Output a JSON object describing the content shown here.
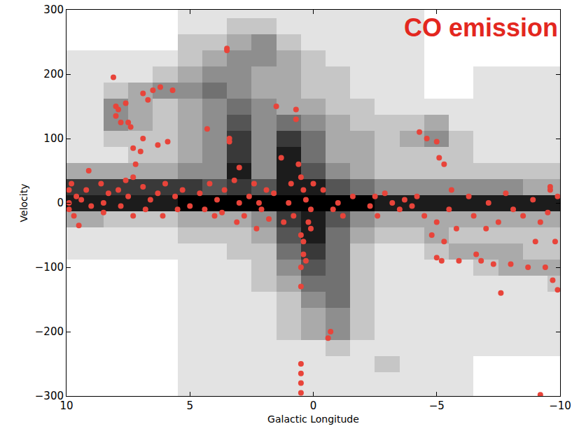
{
  "chart_data": {
    "type": "scatter",
    "xlabel": "Galactic Longitude",
    "ylabel": "Velocity",
    "xlim": [
      10,
      -10
    ],
    "ylim": [
      -300,
      300
    ],
    "xticks": [
      10,
      5,
      0,
      {
        "value": -5,
        "label": "−5"
      },
      {
        "value": -10,
        "label": "−10"
      }
    ],
    "yticks": [
      {
        "value": -300,
        "label": "−300"
      },
      {
        "value": -200,
        "label": "−200"
      },
      {
        "value": -100,
        "label": "−100"
      },
      0,
      100,
      200,
      300
    ],
    "grid": false,
    "annotations": [
      {
        "text": "CO emission",
        "color": "#e3271f"
      }
    ],
    "heatmap": {
      "x": [
        10,
        9,
        8,
        7,
        6,
        5,
        4,
        3,
        2,
        1,
        0,
        -1,
        -2,
        -3,
        -4,
        -5,
        -6,
        -7,
        -8,
        -9,
        -10
      ],
      "y": [
        -300,
        -275,
        -250,
        -225,
        -200,
        -175,
        -150,
        -125,
        -100,
        -75,
        -50,
        -25,
        0,
        25,
        50,
        75,
        100,
        125,
        150,
        175,
        200,
        225,
        250,
        275,
        300
      ],
      "zlim": [
        0,
        9
      ],
      "z": [
        [
          null,
          null,
          null,
          null,
          null,
          1,
          1,
          1,
          1,
          1,
          1,
          1,
          1,
          1,
          1,
          1,
          1,
          null,
          null,
          null,
          null
        ],
        [
          null,
          null,
          null,
          null,
          null,
          1,
          1,
          1,
          1,
          1,
          1,
          1,
          1,
          1,
          1,
          1,
          1,
          null,
          null,
          null,
          null
        ],
        [
          null,
          null,
          null,
          null,
          null,
          1,
          1,
          1,
          1,
          1,
          1,
          1,
          1,
          2,
          1,
          1,
          1,
          null,
          null,
          null,
          null
        ],
        [
          null,
          null,
          null,
          null,
          null,
          1,
          1,
          1,
          1,
          1,
          1,
          2,
          1,
          1,
          1,
          1,
          1,
          1,
          1,
          1,
          1
        ],
        [
          null,
          null,
          null,
          null,
          null,
          1,
          1,
          1,
          1,
          2,
          3,
          4,
          2,
          1,
          1,
          1,
          1,
          1,
          1,
          1,
          1
        ],
        [
          null,
          null,
          null,
          null,
          null,
          1,
          1,
          1,
          1,
          2,
          3,
          4,
          2,
          1,
          1,
          1,
          1,
          1,
          1,
          1,
          1
        ],
        [
          null,
          null,
          null,
          null,
          null,
          1,
          1,
          1,
          1,
          2,
          4,
          5,
          2,
          1,
          1,
          1,
          1,
          1,
          1,
          1,
          1
        ],
        [
          null,
          null,
          null,
          null,
          null,
          1,
          1,
          1,
          2,
          3,
          5,
          5,
          2,
          1,
          1,
          1,
          1,
          1,
          1,
          1,
          2
        ],
        [
          null,
          null,
          null,
          null,
          null,
          1,
          1,
          1,
          2,
          4,
          6,
          5,
          2,
          1,
          1,
          1,
          1,
          2,
          3,
          3,
          3
        ],
        [
          1,
          1,
          1,
          1,
          1,
          1,
          1,
          2,
          2,
          5,
          7,
          5,
          2,
          1,
          1,
          2,
          3,
          3,
          3,
          2,
          2
        ],
        [
          1,
          1,
          1,
          1,
          1,
          2,
          2,
          2,
          3,
          6,
          8,
          5,
          3,
          2,
          2,
          3,
          2,
          2,
          2,
          2,
          2
        ],
        [
          3,
          3,
          2,
          2,
          2,
          3,
          3,
          3,
          4,
          7,
          8,
          6,
          4,
          3,
          3,
          3,
          3,
          3,
          3,
          3,
          3
        ],
        [
          8,
          8,
          8,
          8,
          8,
          9,
          9,
          9,
          9,
          9,
          9,
          9,
          9,
          8,
          8,
          8,
          8,
          8,
          8,
          8,
          8
        ],
        [
          7,
          7,
          7,
          7,
          7,
          7,
          6,
          7,
          6,
          8,
          8,
          6,
          5,
          4,
          4,
          4,
          4,
          4,
          4,
          3,
          3
        ],
        [
          3,
          3,
          3,
          3,
          3,
          4,
          4,
          8,
          4,
          8,
          6,
          4,
          3,
          2,
          2,
          2,
          2,
          2,
          2,
          2,
          2
        ],
        [
          1,
          1,
          1,
          2,
          2,
          3,
          4,
          7,
          4,
          8,
          5,
          3,
          3,
          2,
          2,
          2,
          2,
          1,
          1,
          1,
          1
        ],
        [
          1,
          1,
          2,
          2,
          2,
          3,
          4,
          7,
          4,
          7,
          5,
          3,
          3,
          2,
          3,
          4,
          2,
          1,
          1,
          1,
          1
        ],
        [
          1,
          1,
          4,
          3,
          2,
          3,
          4,
          6,
          4,
          5,
          4,
          3,
          2,
          2,
          2,
          3,
          1,
          1,
          1,
          1,
          1
        ],
        [
          1,
          1,
          4,
          3,
          2,
          3,
          4,
          5,
          4,
          3,
          3,
          2,
          2,
          1,
          1,
          1,
          1,
          1,
          1,
          1,
          1
        ],
        [
          1,
          1,
          2,
          3,
          4,
          4,
          5,
          4,
          3,
          3,
          2,
          2,
          1,
          1,
          1,
          null,
          null,
          1,
          1,
          1,
          1
        ],
        [
          1,
          1,
          1,
          1,
          2,
          3,
          4,
          4,
          3,
          3,
          2,
          2,
          1,
          1,
          1,
          null,
          null,
          1,
          1,
          1,
          1
        ],
        [
          1,
          1,
          1,
          1,
          1,
          2,
          3,
          4,
          4,
          3,
          2,
          1,
          1,
          1,
          1,
          null,
          null,
          null,
          null,
          null,
          null
        ],
        [
          null,
          null,
          null,
          null,
          null,
          2,
          2,
          3,
          4,
          2,
          1,
          1,
          1,
          1,
          1,
          null,
          null,
          null,
          null,
          null,
          null
        ],
        [
          null,
          null,
          null,
          null,
          null,
          1,
          1,
          2,
          2,
          1,
          1,
          1,
          1,
          1,
          1,
          null,
          null,
          null,
          null,
          null,
          null
        ],
        [
          null,
          null,
          null,
          null,
          null,
          1,
          1,
          1,
          1,
          1,
          1,
          1,
          1,
          1,
          1,
          null,
          null,
          null,
          null,
          null,
          null
        ]
      ]
    },
    "series": [
      {
        "color": "#e8443a",
        "marker": "circle",
        "x": [
          9.9,
          9.9,
          9.9,
          9.8,
          9.7,
          9.6,
          9.5,
          9.4,
          9.2,
          9.0,
          9.1,
          8.6,
          8.5,
          8.5,
          8.3,
          8.1,
          8.0,
          8.0,
          7.9,
          7.8,
          7.6,
          7.5,
          7.4,
          7.9,
          7.8,
          7.6,
          7.5,
          7.3,
          7.3,
          7.2,
          7.3,
          7.0,
          6.9,
          6.9,
          6.8,
          6.9,
          6.7,
          6.5,
          6.6,
          6.3,
          6.2,
          6.3,
          6.1,
          6.0,
          5.9,
          5.7,
          5.6,
          5.5,
          5.3,
          5.0,
          4.6,
          4.4,
          4.3,
          4.2,
          4.0,
          3.9,
          3.7,
          3.6,
          3.5,
          3.5,
          3.4,
          3.4,
          3.2,
          3.1,
          3.0,
          3.0,
          2.8,
          2.6,
          2.4,
          2.3,
          2.2,
          2.1,
          1.9,
          1.8,
          1.6,
          1.5,
          1.3,
          1.2,
          1.0,
          0.9,
          0.8,
          0.7,
          0.7,
          0.6,
          0.5,
          0.5,
          0.4,
          0.4,
          0.3,
          0.2,
          0.1,
          0.0,
          0.5,
          0.5,
          0.5,
          0.5,
          0.5,
          0.5,
          0.4,
          0.3,
          0.1,
          -0.6,
          -0.7,
          -0.4,
          -0.8,
          -1.0,
          -1.2,
          -1.6,
          -2.3,
          -2.5,
          -2.6,
          -2.9,
          -3.2,
          -3.5,
          -3.7,
          -4.0,
          -4.2,
          -4.3,
          -4.6,
          -5.0,
          -5.1,
          -5.3,
          -4.5,
          -4.8,
          -5.0,
          -5.2,
          -5.0,
          -5.3,
          -5.5,
          -5.6,
          -5.8,
          -5.9,
          -6.3,
          -6.5,
          -6.6,
          -6.8,
          -7.0,
          -7.1,
          -7.3,
          -7.5,
          -7.6,
          -7.8,
          -8.0,
          -8.1,
          -8.5,
          -8.7,
          -8.9,
          -9.0,
          -9.2,
          -9.4,
          -9.5,
          -9.6,
          -9.7,
          -9.8,
          -9.9,
          -9.9,
          -9.2,
          -9.6
        ],
        "y": [
          20,
          0,
          -10,
          30,
          -20,
          10,
          -35,
          5,
          20,
          -5,
          50,
          30,
          0,
          -15,
          15,
          195,
          150,
          135,
          145,
          125,
          155,
          125,
          118,
          20,
          -5,
          35,
          10,
          -20,
          85,
          60,
          40,
          80,
          100,
          25,
          -10,
          170,
          160,
          175,
          5,
          90,
          180,
          15,
          -20,
          30,
          95,
          175,
          10,
          -10,
          20,
          -5,
          15,
          -10,
          115,
          30,
          -20,
          5,
          -15,
          20,
          240,
          237,
          100,
          95,
          35,
          -30,
          0,
          55,
          -20,
          10,
          30,
          -40,
          0,
          -10,
          20,
          -25,
          15,
          150,
          70,
          -30,
          0,
          30,
          -20,
          130,
          145,
          60,
          40,
          -50,
          -60,
          20,
          5,
          -30,
          -10,
          30,
          -100,
          -130,
          -250,
          -265,
          -280,
          -295,
          -80,
          -90,
          -40,
          -210,
          -200,
          20,
          -10,
          0,
          -20,
          10,
          -5,
          10,
          -20,
          15,
          0,
          -10,
          5,
          -5,
          10,
          110,
          100,
          95,
          70,
          60,
          -20,
          -50,
          -85,
          -90,
          -30,
          -60,
          -10,
          20,
          -40,
          -90,
          10,
          -20,
          -80,
          -90,
          -40,
          0,
          -95,
          -30,
          -140,
          15,
          -95,
          -10,
          -20,
          -100,
          5,
          -60,
          -30,
          -100,
          -15,
          20,
          -120,
          -60,
          -135,
          10,
          -298,
          25
        ]
      }
    ]
  }
}
